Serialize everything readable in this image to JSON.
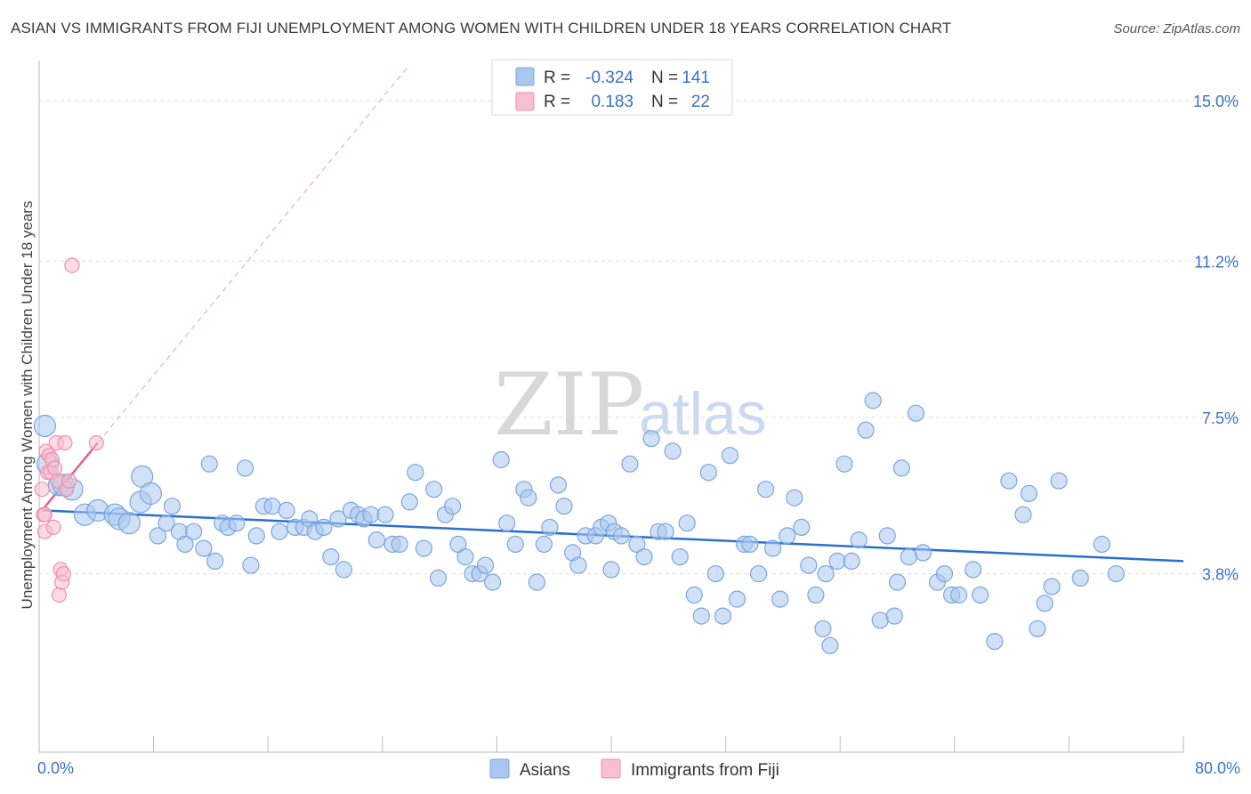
{
  "title": "ASIAN VS IMMIGRANTS FROM FIJI UNEMPLOYMENT AMONG WOMEN WITH CHILDREN UNDER 18 YEARS CORRELATION CHART",
  "source": "Source: ZipAtlas.com",
  "watermark": {
    "zip": "ZIP",
    "atlas": "atlas"
  },
  "colors": {
    "asians_fill": "#a9c8f0",
    "asians_stroke": "#7aa6de",
    "asians_line": "#2a6fd0",
    "fiji_fill": "#f7bfd0",
    "fiji_stroke": "#ec90ae",
    "fiji_line": "#e0608e",
    "axis_text": "#3a72c4"
  },
  "stats": [
    {
      "r_label": "R =",
      "r_value": "-0.324",
      "n_label": "N =",
      "n_value": "141"
    },
    {
      "r_label": "R =",
      "r_value": "0.183",
      "n_label": "N =",
      "n_value": "22"
    }
  ],
  "chart_data": {
    "type": "scatter",
    "title": "ASIAN VS IMMIGRANTS FROM FIJI UNEMPLOYMENT AMONG WOMEN WITH CHILDREN UNDER 18 YEARS CORRELATION CHART",
    "xlabel": "",
    "ylabel": "Unemployment Among Women with Children Under 18 years",
    "xlim": [
      0,
      80
    ],
    "ylim": [
      0,
      15.8
    ],
    "x_tick_labels": [
      "0.0%",
      "80.0%"
    ],
    "y_ticks": [
      3.8,
      7.5,
      11.2,
      15.0
    ],
    "y_tick_labels": [
      "3.8%",
      "7.5%",
      "11.2%",
      "15.0%"
    ],
    "grid": "horizontal dashed",
    "legend": "bottom-center",
    "series": [
      {
        "name": "Asians",
        "r": -0.324,
        "n": 141,
        "trend": {
          "x0": 0.2,
          "y0": 5.3,
          "x1": 80,
          "y1": 4.1
        },
        "points": [
          [
            0.4,
            7.3
          ],
          [
            0.6,
            6.4
          ],
          [
            1.4,
            5.9
          ],
          [
            1.7,
            5.9
          ],
          [
            2.3,
            5.8
          ],
          [
            3.2,
            5.2
          ],
          [
            4.1,
            5.3
          ],
          [
            5.3,
            5.2
          ],
          [
            5.6,
            5.1
          ],
          [
            6.3,
            5.0
          ],
          [
            7.1,
            5.5
          ],
          [
            7.2,
            6.1
          ],
          [
            7.8,
            5.7
          ],
          [
            8.3,
            4.7
          ],
          [
            8.9,
            5.0
          ],
          [
            9.3,
            5.4
          ],
          [
            9.8,
            4.8
          ],
          [
            10.2,
            4.5
          ],
          [
            10.8,
            4.8
          ],
          [
            11.5,
            4.4
          ],
          [
            11.9,
            6.4
          ],
          [
            12.3,
            4.1
          ],
          [
            12.8,
            5.0
          ],
          [
            13.2,
            4.9
          ],
          [
            13.8,
            5.0
          ],
          [
            14.4,
            6.3
          ],
          [
            14.8,
            4.0
          ],
          [
            15.2,
            4.7
          ],
          [
            15.7,
            5.4
          ],
          [
            16.3,
            5.4
          ],
          [
            16.8,
            4.8
          ],
          [
            17.3,
            5.3
          ],
          [
            17.9,
            4.9
          ],
          [
            18.5,
            4.9
          ],
          [
            18.9,
            5.1
          ],
          [
            19.3,
            4.8
          ],
          [
            19.9,
            4.9
          ],
          [
            20.4,
            4.2
          ],
          [
            20.9,
            5.1
          ],
          [
            21.3,
            3.9
          ],
          [
            21.8,
            5.3
          ],
          [
            22.3,
            5.2
          ],
          [
            22.7,
            5.1
          ],
          [
            23.2,
            5.2
          ],
          [
            23.6,
            4.6
          ],
          [
            24.2,
            5.2
          ],
          [
            24.7,
            4.5
          ],
          [
            25.2,
            4.5
          ],
          [
            25.9,
            5.5
          ],
          [
            26.3,
            6.2
          ],
          [
            26.9,
            4.4
          ],
          [
            27.6,
            5.8
          ],
          [
            27.9,
            3.7
          ],
          [
            28.4,
            5.2
          ],
          [
            28.9,
            5.4
          ],
          [
            29.3,
            4.5
          ],
          [
            29.8,
            4.2
          ],
          [
            30.3,
            3.8
          ],
          [
            30.8,
            3.8
          ],
          [
            31.2,
            4.0
          ],
          [
            31.7,
            3.6
          ],
          [
            32.3,
            6.5
          ],
          [
            32.7,
            5.0
          ],
          [
            33.3,
            4.5
          ],
          [
            33.9,
            5.8
          ],
          [
            34.2,
            5.6
          ],
          [
            34.8,
            3.6
          ],
          [
            35.3,
            4.5
          ],
          [
            35.7,
            4.9
          ],
          [
            36.3,
            5.9
          ],
          [
            36.7,
            5.4
          ],
          [
            37.3,
            4.3
          ],
          [
            37.7,
            4.0
          ],
          [
            38.2,
            4.7
          ],
          [
            38.9,
            4.7
          ],
          [
            39.3,
            4.9
          ],
          [
            39.8,
            5.0
          ],
          [
            40.2,
            4.8
          ],
          [
            40.7,
            4.7
          ],
          [
            41.3,
            6.4
          ],
          [
            41.8,
            4.5
          ],
          [
            42.3,
            4.2
          ],
          [
            42.8,
            7.0
          ],
          [
            43.3,
            4.8
          ],
          [
            43.8,
            4.8
          ],
          [
            44.3,
            6.7
          ],
          [
            44.8,
            4.2
          ],
          [
            45.3,
            5.0
          ],
          [
            45.8,
            3.3
          ],
          [
            46.3,
            2.8
          ],
          [
            46.8,
            6.2
          ],
          [
            47.3,
            3.8
          ],
          [
            47.8,
            2.8
          ],
          [
            48.3,
            6.6
          ],
          [
            48.8,
            3.2
          ],
          [
            49.3,
            4.5
          ],
          [
            49.7,
            4.5
          ],
          [
            50.3,
            3.8
          ],
          [
            50.8,
            5.8
          ],
          [
            51.3,
            4.4
          ],
          [
            51.8,
            3.2
          ],
          [
            52.3,
            4.7
          ],
          [
            52.8,
            5.6
          ],
          [
            53.3,
            4.9
          ],
          [
            53.8,
            4.0
          ],
          [
            54.3,
            3.3
          ],
          [
            54.8,
            2.5
          ],
          [
            55.3,
            2.1
          ],
          [
            55.8,
            4.1
          ],
          [
            56.3,
            6.4
          ],
          [
            56.8,
            4.1
          ],
          [
            57.3,
            4.6
          ],
          [
            57.8,
            7.2
          ],
          [
            58.3,
            7.9
          ],
          [
            58.8,
            2.7
          ],
          [
            59.3,
            4.7
          ],
          [
            59.8,
            2.8
          ],
          [
            60.3,
            6.3
          ],
          [
            60.8,
            4.2
          ],
          [
            61.3,
            7.6
          ],
          [
            61.8,
            4.3
          ],
          [
            62.8,
            3.6
          ],
          [
            63.3,
            3.8
          ],
          [
            63.8,
            3.3
          ],
          [
            64.3,
            3.3
          ],
          [
            65.3,
            3.9
          ],
          [
            65.8,
            3.3
          ],
          [
            66.8,
            2.2
          ],
          [
            67.8,
            6.0
          ],
          [
            68.8,
            5.2
          ],
          [
            69.2,
            5.7
          ],
          [
            69.8,
            2.5
          ],
          [
            70.3,
            3.1
          ],
          [
            70.8,
            3.5
          ],
          [
            71.3,
            6.0
          ],
          [
            72.8,
            3.7
          ],
          [
            74.3,
            4.5
          ],
          [
            75.3,
            3.8
          ],
          [
            40.0,
            3.9
          ],
          [
            55.0,
            3.8
          ],
          [
            60.0,
            3.6
          ]
        ]
      },
      {
        "name": "Immigrants from Fiji",
        "r": 0.183,
        "n": 22,
        "trend": {
          "x0": 0.2,
          "y0": 5.3,
          "x1": 4.1,
          "y1": 6.9
        },
        "points": [
          [
            0.2,
            5.8
          ],
          [
            0.3,
            5.2
          ],
          [
            0.4,
            5.2
          ],
          [
            0.4,
            4.8
          ],
          [
            0.5,
            6.7
          ],
          [
            0.6,
            6.2
          ],
          [
            0.7,
            6.6
          ],
          [
            0.8,
            6.2
          ],
          [
            0.9,
            6.5
          ],
          [
            1.0,
            4.9
          ],
          [
            1.1,
            6.3
          ],
          [
            1.2,
            6.9
          ],
          [
            1.3,
            6.0
          ],
          [
            1.4,
            3.3
          ],
          [
            1.5,
            3.9
          ],
          [
            1.6,
            3.6
          ],
          [
            1.7,
            3.8
          ],
          [
            1.8,
            6.9
          ],
          [
            1.9,
            5.8
          ],
          [
            2.1,
            6.0
          ],
          [
            2.3,
            11.1
          ],
          [
            4.0,
            6.9
          ]
        ]
      }
    ]
  },
  "legend": {
    "items": [
      "Asians",
      "Immigrants from Fiji"
    ]
  }
}
